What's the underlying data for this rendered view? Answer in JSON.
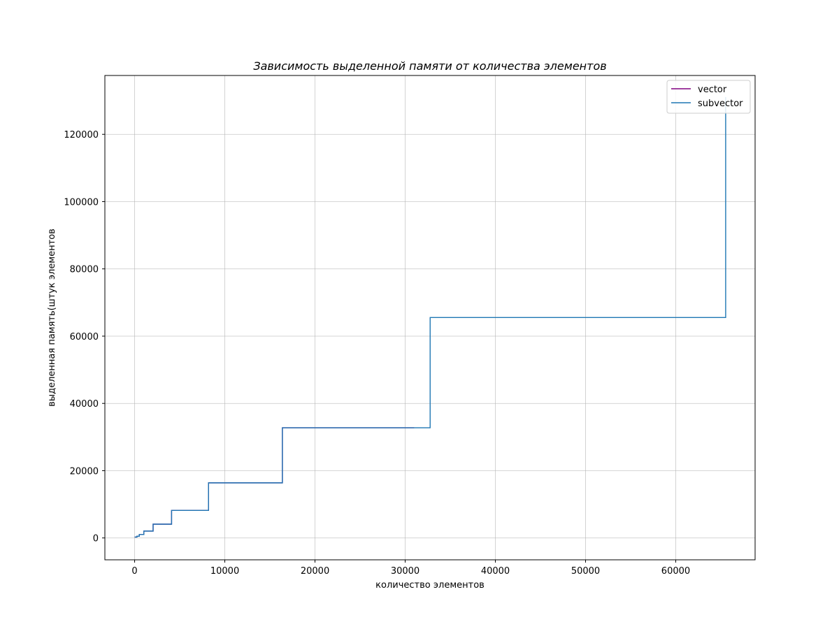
{
  "chart_data": {
    "type": "line",
    "title": "Зависимость выделенной памяти от количества элементов",
    "xlabel": "количество элементов",
    "ylabel": "выделенная память(штук элементов",
    "xlim": [
      -3300,
      68800
    ],
    "ylim": [
      -6500,
      137500
    ],
    "x_ticks": [
      0,
      10000,
      20000,
      30000,
      40000,
      50000,
      60000
    ],
    "y_ticks": [
      0,
      20000,
      40000,
      60000,
      80000,
      100000,
      120000
    ],
    "grid": true,
    "legend_position": "upper right",
    "series": [
      {
        "name": "vector",
        "color": "#800080",
        "step": true,
        "x": [
          0,
          256,
          512,
          1024,
          2048,
          4096,
          8192,
          16384,
          31000
        ],
        "y": [
          256,
          512,
          1024,
          2048,
          4096,
          8192,
          16384,
          32768,
          32768
        ]
      },
      {
        "name": "subvector",
        "color": "#1f77b4",
        "step": true,
        "x": [
          0,
          256,
          512,
          1024,
          2048,
          4096,
          8192,
          16384,
          32768,
          65536
        ],
        "y": [
          256,
          512,
          1024,
          2048,
          4096,
          8192,
          16384,
          32768,
          65536,
          131072
        ]
      }
    ]
  }
}
